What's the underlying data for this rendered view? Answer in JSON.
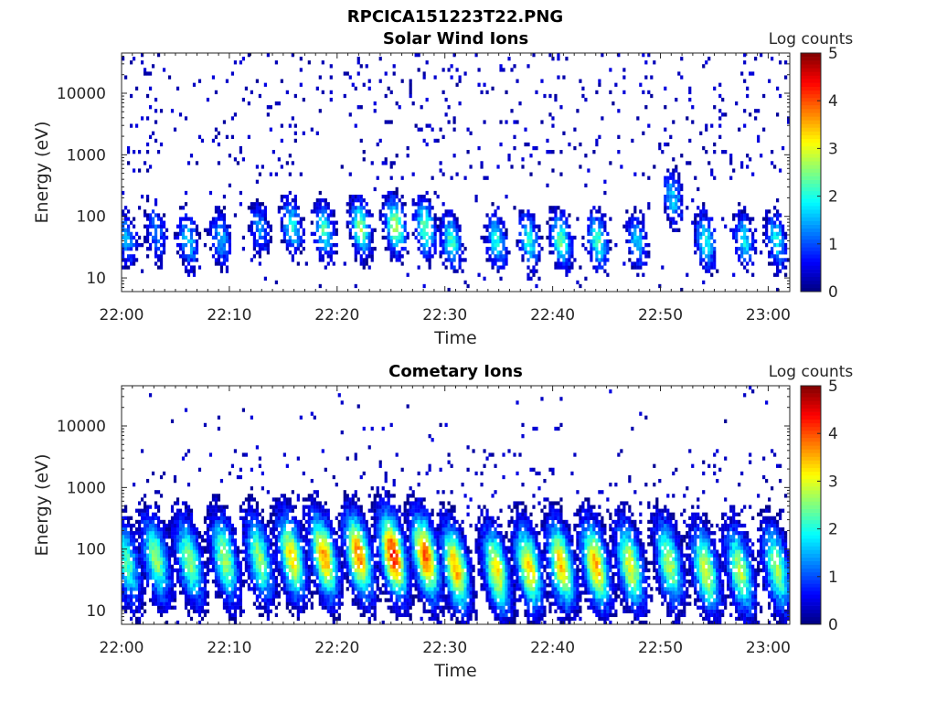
{
  "figure": {
    "title": "RPCICA151223T22.PNG"
  },
  "chart_data": [
    {
      "type": "heatmap",
      "title": "Solar Wind Ions",
      "xlabel": "Time",
      "ylabel": "Energy (eV)",
      "x_ticks": [
        "22:00",
        "22:10",
        "22:20",
        "22:30",
        "22:40",
        "22:50",
        "23:00"
      ],
      "x_range": [
        "22:00",
        "23:02"
      ],
      "y_ticks": [
        "10",
        "100",
        "1000",
        "10000"
      ],
      "y_scale": "log",
      "y_range": [
        6,
        45000
      ],
      "colorbar": {
        "label": "Log counts",
        "ticks": [
          "0",
          "1",
          "2",
          "3",
          "4",
          "5"
        ],
        "range": [
          0,
          5
        ],
        "colormap": "jet"
      },
      "bursts": [
        {
          "t": 0.5,
          "e": 45,
          "peak": 1.4
        },
        {
          "t": 3.2,
          "e": 55,
          "peak": 1.3
        },
        {
          "t": 6.2,
          "e": 40,
          "peak": 1.7
        },
        {
          "t": 9.2,
          "e": 45,
          "peak": 1.5
        },
        {
          "t": 12.8,
          "e": 60,
          "peak": 1.3
        },
        {
          "t": 15.8,
          "e": 70,
          "peak": 2.0
        },
        {
          "t": 18.8,
          "e": 60,
          "peak": 2.2
        },
        {
          "t": 22.2,
          "e": 65,
          "peak": 2.6
        },
        {
          "t": 25.4,
          "e": 70,
          "peak": 2.9
        },
        {
          "t": 28.2,
          "e": 65,
          "peak": 2.5
        },
        {
          "t": 30.6,
          "e": 40,
          "peak": 2.2
        },
        {
          "t": 34.8,
          "e": 40,
          "peak": 2.0
        },
        {
          "t": 37.8,
          "e": 40,
          "peak": 2.0
        },
        {
          "t": 40.8,
          "e": 40,
          "peak": 2.4
        },
        {
          "t": 44.2,
          "e": 40,
          "peak": 2.3
        },
        {
          "t": 47.8,
          "e": 40,
          "peak": 1.6
        },
        {
          "t": 51.2,
          "e": 200,
          "peak": 1.6
        },
        {
          "t": 54.2,
          "e": 40,
          "peak": 2.0
        },
        {
          "t": 57.8,
          "e": 40,
          "peak": 1.8
        },
        {
          "t": 60.8,
          "e": 40,
          "peak": 1.9
        }
      ]
    },
    {
      "type": "heatmap",
      "title": "Cometary Ions",
      "xlabel": "Time",
      "ylabel": "Energy (eV)",
      "x_ticks": [
        "22:00",
        "22:10",
        "22:20",
        "22:30",
        "22:40",
        "22:50",
        "23:00"
      ],
      "x_range": [
        "22:00",
        "23:02"
      ],
      "y_ticks": [
        "10",
        "100",
        "1000",
        "10000"
      ],
      "y_scale": "log",
      "y_range": [
        6,
        45000
      ],
      "colorbar": {
        "label": "Log counts",
        "ticks": [
          "0",
          "1",
          "2",
          "3",
          "4",
          "5"
        ],
        "range": [
          0,
          5
        ],
        "colormap": "jet"
      },
      "bursts": [
        {
          "t": 0.5,
          "e": 60,
          "peak": 2.2
        },
        {
          "t": 3.2,
          "e": 70,
          "peak": 2.6
        },
        {
          "t": 6.3,
          "e": 65,
          "peak": 2.6
        },
        {
          "t": 9.6,
          "e": 70,
          "peak": 2.7
        },
        {
          "t": 12.8,
          "e": 70,
          "peak": 2.6
        },
        {
          "t": 15.8,
          "e": 75,
          "peak": 3.3
        },
        {
          "t": 18.8,
          "e": 75,
          "peak": 3.6
        },
        {
          "t": 22.0,
          "e": 80,
          "peak": 3.8
        },
        {
          "t": 25.2,
          "e": 80,
          "peak": 4.3
        },
        {
          "t": 28.2,
          "e": 75,
          "peak": 4.0
        },
        {
          "t": 31.0,
          "e": 50,
          "peak": 3.6
        },
        {
          "t": 34.8,
          "e": 45,
          "peak": 3.2
        },
        {
          "t": 37.8,
          "e": 50,
          "peak": 3.3
        },
        {
          "t": 40.8,
          "e": 55,
          "peak": 3.4
        },
        {
          "t": 44.0,
          "e": 55,
          "peak": 3.6
        },
        {
          "t": 47.2,
          "e": 55,
          "peak": 3.1
        },
        {
          "t": 50.8,
          "e": 60,
          "peak": 2.8
        },
        {
          "t": 54.2,
          "e": 45,
          "peak": 3.0
        },
        {
          "t": 57.4,
          "e": 45,
          "peak": 2.8
        },
        {
          "t": 60.8,
          "e": 50,
          "peak": 2.7
        }
      ]
    }
  ]
}
